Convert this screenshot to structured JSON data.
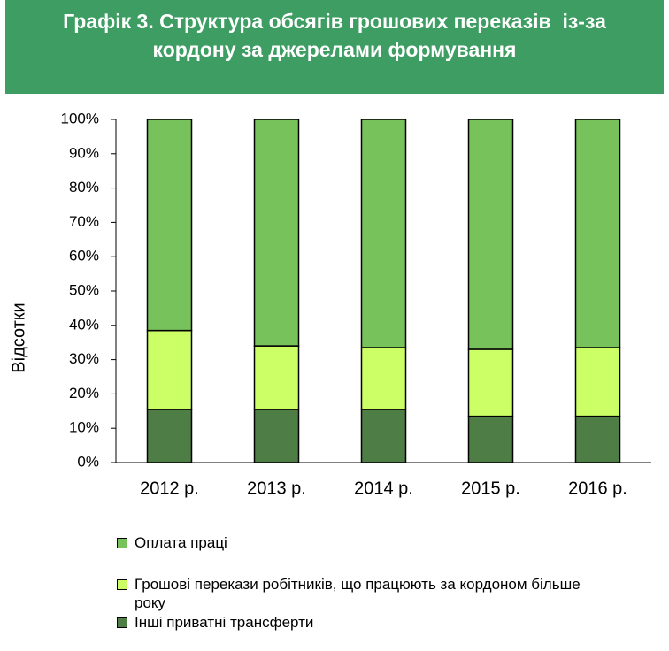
{
  "chart_data": {
    "type": "stacked_bar",
    "title": [
      "Графік 3. Структура обсягів грошових переказів  із-за",
      "кордону за джерелами формування"
    ],
    "ylabel": "Відсотки",
    "categories": [
      "2012 р.",
      "2013 р.",
      "2014 р.",
      "2015 р.",
      "2016 р."
    ],
    "series": [
      {
        "name": "Інші приватні  трансферти",
        "color": "#4f7d46",
        "values": [
          15.5,
          15.5,
          15.5,
          13.5,
          13.5
        ]
      },
      {
        "name": "Грошові перекази робітників, що працюють за кордоном більше року",
        "color": "#ccff66",
        "values": [
          23,
          18.5,
          18,
          19.5,
          20
        ]
      },
      {
        "name": "Оплата праці",
        "color": "#77c25b",
        "values": [
          61.5,
          66,
          66.5,
          67,
          66.5
        ]
      }
    ],
    "ylim": [
      0,
      100
    ],
    "yticks": [
      {
        "value": 0,
        "label": "0%"
      },
      {
        "value": 10,
        "label": "10%"
      },
      {
        "value": 20,
        "label": "20%"
      },
      {
        "value": 30,
        "label": "30%"
      },
      {
        "value": 40,
        "label": "40%"
      },
      {
        "value": 50,
        "label": "50%"
      },
      {
        "value": 60,
        "label": "60%"
      },
      {
        "value": 70,
        "label": "70%"
      },
      {
        "value": 80,
        "label": "80%"
      },
      {
        "value": 90,
        "label": "90%"
      },
      {
        "value": 100,
        "label": "100%"
      }
    ]
  }
}
